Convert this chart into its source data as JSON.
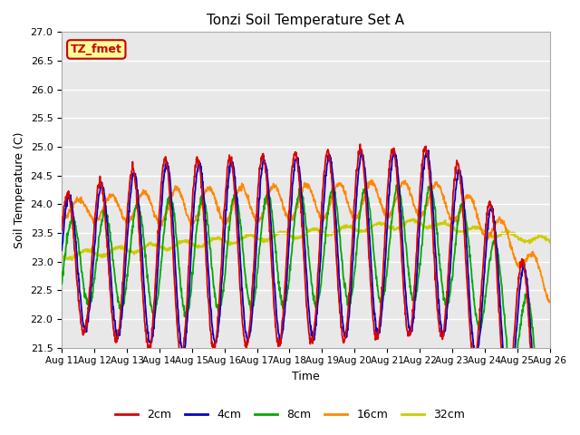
{
  "title": "Tonzi Soil Temperature Set A",
  "xlabel": "Time",
  "ylabel": "Soil Temperature (C)",
  "ylim": [
    21.5,
    27.0
  ],
  "yticks": [
    21.5,
    22.0,
    22.5,
    23.0,
    23.5,
    24.0,
    24.5,
    25.0,
    25.5,
    26.0,
    26.5,
    27.0
  ],
  "x_tick_labels": [
    "Aug 11",
    "Aug 12",
    "Aug 13",
    "Aug 14",
    "Aug 15",
    "Aug 16",
    "Aug 17",
    "Aug 18",
    "Aug 19",
    "Aug 20",
    "Aug 21",
    "Aug 22",
    "Aug 23",
    "Aug 24",
    "Aug 25",
    "Aug 26"
  ],
  "annotation_text": "TZ_fmet",
  "annotation_bg": "#ffff99",
  "annotation_border": "#cc0000",
  "background_color": "#e8e8e8",
  "plot_bg": "#e8e8e8",
  "line_colors": {
    "2cm": "#dd0000",
    "4cm": "#0000cc",
    "8cm": "#00aa00",
    "16cm": "#ff8800",
    "32cm": "#cccc00"
  },
  "line_width": 1.3
}
